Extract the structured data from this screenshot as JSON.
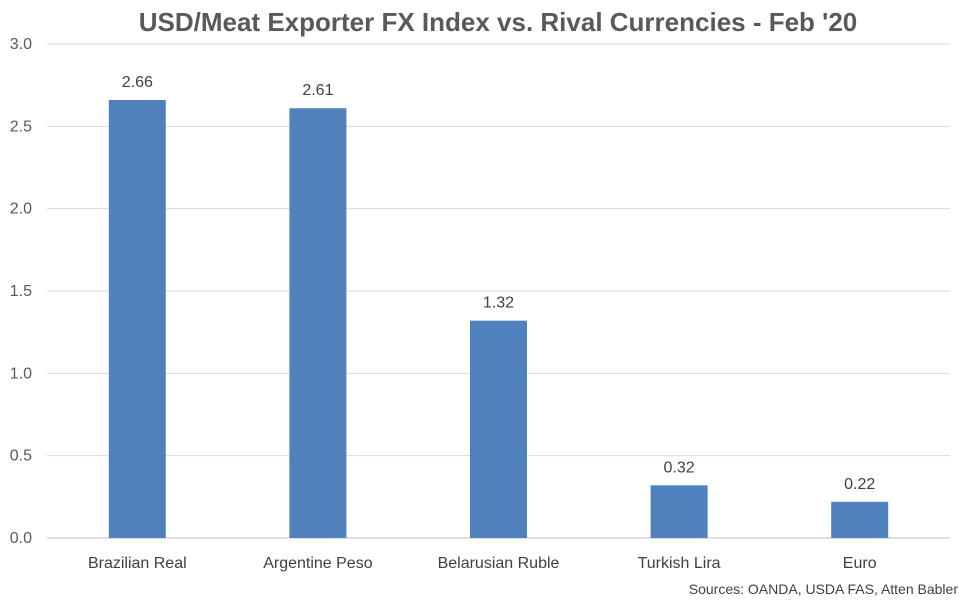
{
  "chart_data": {
    "type": "bar",
    "title": "USD/Meat Exporter FX Index vs. Rival Currencies - Feb '20",
    "categories": [
      "Brazilian Real",
      "Argentine Peso",
      "Belarusian Ruble",
      "Turkish Lira",
      "Euro"
    ],
    "values": [
      2.66,
      2.61,
      1.32,
      0.32,
      0.22
    ],
    "data_labels": [
      "2.66",
      "2.61",
      "1.32",
      "0.32",
      "0.22"
    ],
    "ylim": [
      0,
      3.0
    ],
    "yticks": [
      "0.0",
      "0.5",
      "1.0",
      "1.5",
      "2.0",
      "2.5",
      "3.0"
    ],
    "grid": true,
    "xlabel": "",
    "ylabel": "",
    "source": "Sources: OANDA, USDA FAS, Atten Babler",
    "colors": {
      "bar": "#4f81bd",
      "grid": "#d9d9d9",
      "axis": "#bfbfbf"
    }
  }
}
